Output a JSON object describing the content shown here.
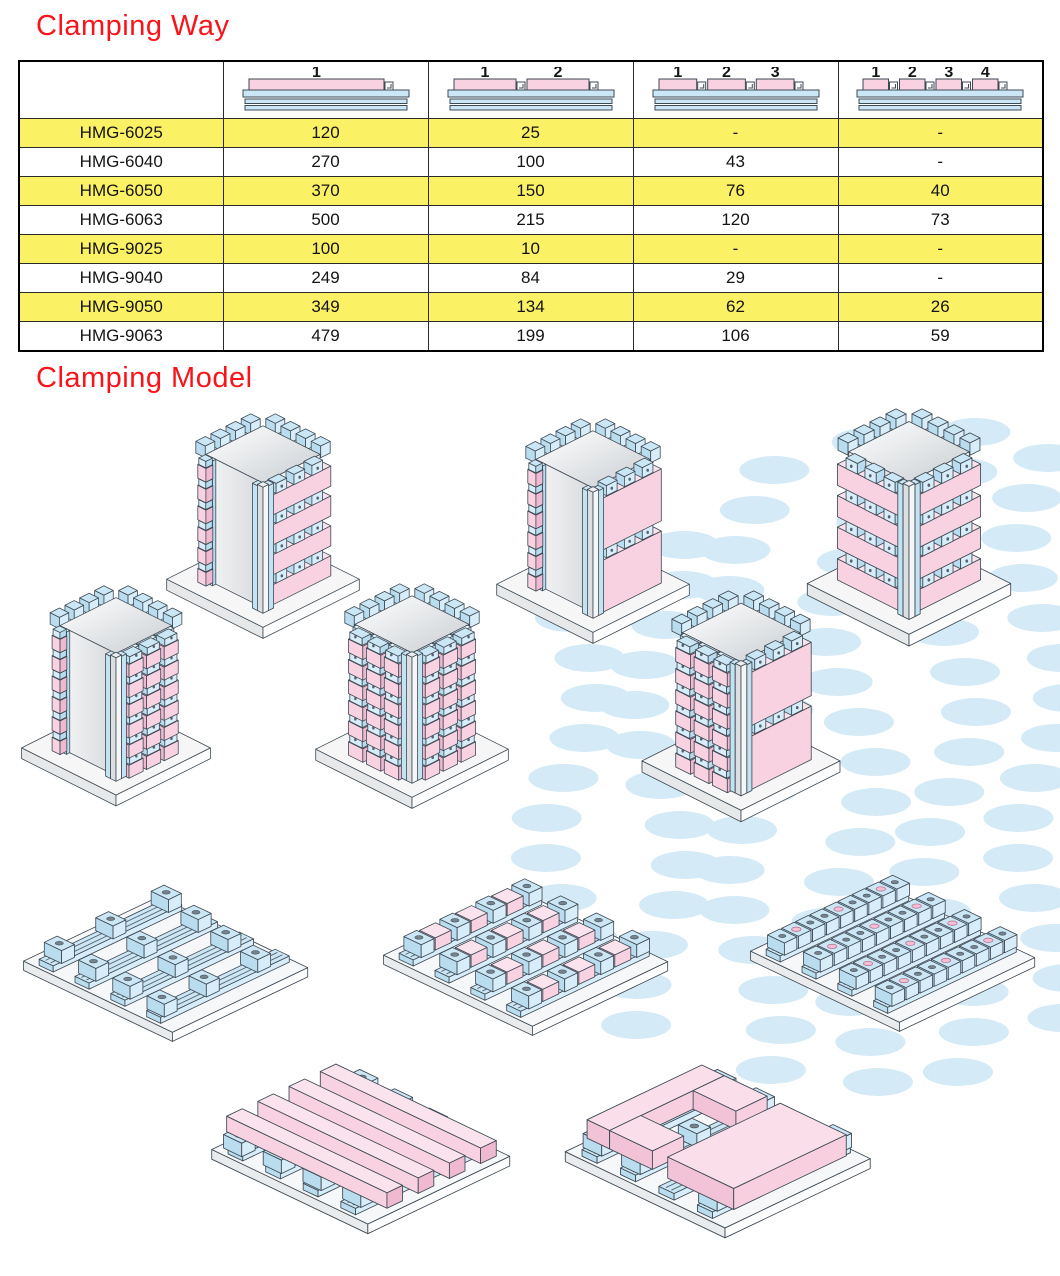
{
  "page": {
    "title_way": "Clamping Way",
    "title_model": "Clamping Model"
  },
  "colors": {
    "accent_red": "#F8141A",
    "row_yellow": "#FBF165",
    "pink": "#F8D2E1",
    "pink_dark": "#EFBAD0",
    "pink_top": "#FBE3ED",
    "blue": "#CBE7F6",
    "blue_dark": "#B9DCEF",
    "blue_light": "#D8EDFA",
    "bg_ellipse": "#D4EAF6",
    "line": "#3E4A54"
  },
  "table": {
    "model_header": "",
    "header_diagrams": [
      {
        "numbers": [
          "1"
        ]
      },
      {
        "numbers": [
          "1",
          "2"
        ]
      },
      {
        "numbers": [
          "1",
          "2",
          "3"
        ]
      },
      {
        "numbers": [
          "1",
          "2",
          "3",
          "4"
        ]
      }
    ],
    "rows": [
      {
        "model": "HMG-6025",
        "values": [
          "120",
          "25",
          "-",
          "-"
        ],
        "highlight": true
      },
      {
        "model": "HMG-6040",
        "values": [
          "270",
          "100",
          "43",
          "-"
        ],
        "highlight": false
      },
      {
        "model": "HMG-6050",
        "values": [
          "370",
          "150",
          "76",
          "40"
        ],
        "highlight": true
      },
      {
        "model": "HMG-6063",
        "values": [
          "500",
          "215",
          "120",
          "73"
        ],
        "highlight": false
      },
      {
        "model": "HMG-9025",
        "values": [
          "100",
          "10",
          "-",
          "-"
        ],
        "highlight": true
      },
      {
        "model": "HMG-9040",
        "values": [
          "249",
          "84",
          "29",
          "-"
        ],
        "highlight": false
      },
      {
        "model": "HMG-9050",
        "values": [
          "349",
          "134",
          "62",
          "26"
        ],
        "highlight": true
      },
      {
        "model": "HMG-9063",
        "values": [
          "479",
          "199",
          "106",
          "59"
        ],
        "highlight": false
      }
    ]
  },
  "models": {
    "items": [
      {
        "id": "tower-horizontal-bars-right",
        "type": "tower",
        "left": "white",
        "right": "bars"
      },
      {
        "id": "tower-block-columns-right",
        "type": "tower",
        "left": "white",
        "right": "blocks"
      },
      {
        "id": "tower-block-columns-both",
        "type": "tower",
        "left": "blocks",
        "right": "blocks"
      },
      {
        "id": "tower-large-panels-right",
        "type": "tower",
        "left": "white",
        "right": "panels"
      },
      {
        "id": "tower-blocks-and-panels",
        "type": "tower",
        "left": "blocks",
        "right": "panels"
      },
      {
        "id": "tower-horizontal-bars-both",
        "type": "tower",
        "left": "bars",
        "right": "bars"
      },
      {
        "id": "plate-empty-rails",
        "type": "plate",
        "variant": "none"
      },
      {
        "id": "plate-small-blocks",
        "type": "plate",
        "variant": "blocks"
      },
      {
        "id": "plate-round-parts",
        "type": "plate",
        "variant": "dots"
      },
      {
        "id": "plate-cross-bars",
        "type": "plate",
        "variant": "crossbars"
      },
      {
        "id": "plate-u-and-block",
        "type": "plate",
        "variant": "uplate"
      }
    ]
  }
}
